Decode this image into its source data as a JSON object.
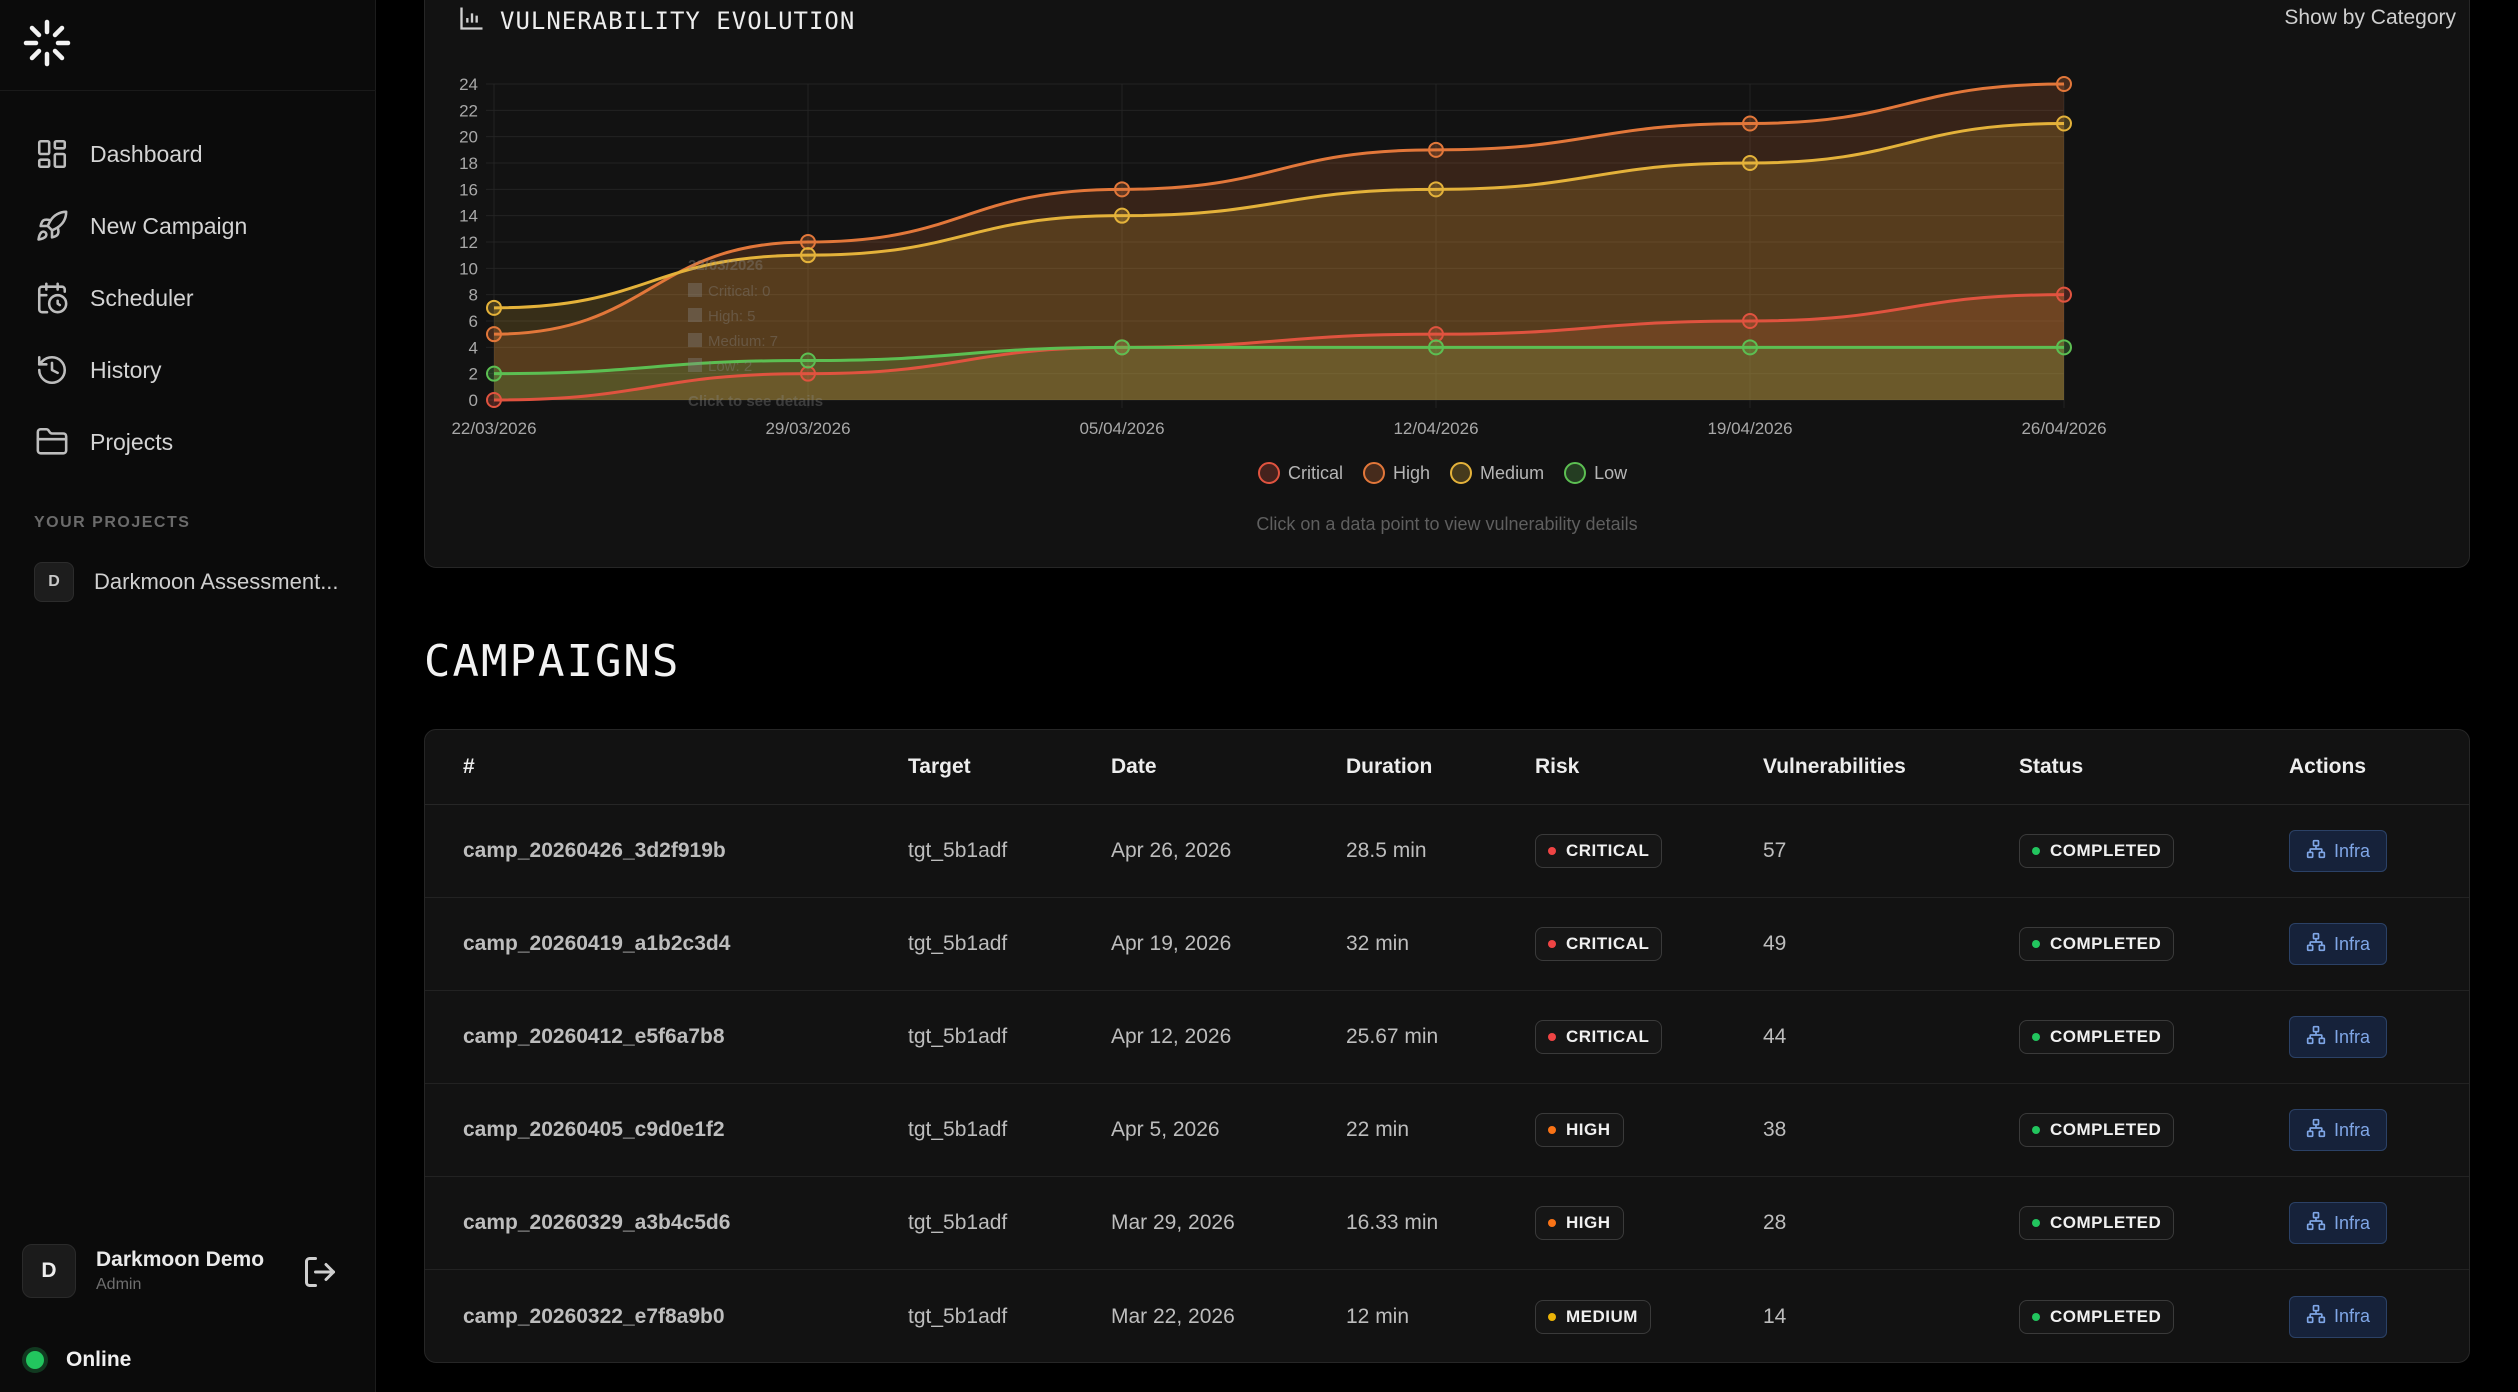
{
  "sidebar": {
    "nav": [
      {
        "label": "Dashboard",
        "icon": "dashboard-icon"
      },
      {
        "label": "New Campaign",
        "icon": "rocket-icon"
      },
      {
        "label": "Scheduler",
        "icon": "calendar-clock-icon"
      },
      {
        "label": "History",
        "icon": "history-icon"
      },
      {
        "label": "Projects",
        "icon": "folder-icon"
      }
    ],
    "projects_label": "YOUR PROJECTS",
    "projects": [
      {
        "initial": "D",
        "name": "Darkmoon Assessment..."
      }
    ],
    "user": {
      "initial": "D",
      "name": "Darkmoon Demo",
      "role": "Admin"
    },
    "status": "Online"
  },
  "chart_header": {
    "title": "VULNERABILITY EVOLUTION",
    "toggle": "Show by Category",
    "hint": "Click on a data point to view vulnerability details"
  },
  "chart_data": {
    "type": "line",
    "title": "VULNERABILITY EVOLUTION",
    "x": [
      "22/03/2026",
      "29/03/2026",
      "05/04/2026",
      "12/04/2026",
      "19/04/2026",
      "26/04/2026"
    ],
    "ylim": [
      0,
      24
    ],
    "yticks": [
      0,
      2,
      4,
      6,
      8,
      10,
      12,
      14,
      16,
      18,
      20,
      22,
      24
    ],
    "grid": true,
    "legend_position": "bottom",
    "series": [
      {
        "name": "Critical",
        "color": "#e0533f",
        "values": [
          0,
          2,
          4,
          5,
          6,
          8
        ]
      },
      {
        "name": "High",
        "color": "#e2773a",
        "values": [
          5,
          12,
          16,
          19,
          21,
          24
        ]
      },
      {
        "name": "Medium",
        "color": "#e4b23a",
        "values": [
          7,
          11,
          14,
          16,
          18,
          21
        ]
      },
      {
        "name": "Low",
        "color": "#5cbf52",
        "values": [
          2,
          3,
          4,
          4,
          4,
          4
        ]
      }
    ],
    "tooltip": {
      "date": "22/03/2026",
      "lines": [
        "Critical: 0",
        "High: 5",
        "Medium: 7",
        "Low: 2"
      ],
      "footer": "Click to see details"
    }
  },
  "campaigns": {
    "title": "CAMPAIGNS",
    "columns": [
      "#",
      "Target",
      "Date",
      "Duration",
      "Risk",
      "Vulnerabilities",
      "Status",
      "Actions"
    ],
    "action_label": "Infra",
    "risk_colors": {
      "CRITICAL": "#ef4444",
      "HIGH": "#f97316",
      "MEDIUM": "#eab308"
    },
    "status_color": "#22c55e",
    "rows": [
      {
        "id": "camp_20260426_3d2f919b",
        "target": "tgt_5b1adf",
        "date": "Apr 26, 2026",
        "duration": "28.5 min",
        "risk": "CRITICAL",
        "vulns": "57",
        "status": "COMPLETED"
      },
      {
        "id": "camp_20260419_a1b2c3d4",
        "target": "tgt_5b1adf",
        "date": "Apr 19, 2026",
        "duration": "32 min",
        "risk": "CRITICAL",
        "vulns": "49",
        "status": "COMPLETED"
      },
      {
        "id": "camp_20260412_e5f6a7b8",
        "target": "tgt_5b1adf",
        "date": "Apr 12, 2026",
        "duration": "25.67 min",
        "risk": "CRITICAL",
        "vulns": "44",
        "status": "COMPLETED"
      },
      {
        "id": "camp_20260405_c9d0e1f2",
        "target": "tgt_5b1adf",
        "date": "Apr 5, 2026",
        "duration": "22 min",
        "risk": "HIGH",
        "vulns": "38",
        "status": "COMPLETED"
      },
      {
        "id": "camp_20260329_a3b4c5d6",
        "target": "tgt_5b1adf",
        "date": "Mar 29, 2026",
        "duration": "16.33 min",
        "risk": "HIGH",
        "vulns": "28",
        "status": "COMPLETED"
      },
      {
        "id": "camp_20260322_e7f8a9b0",
        "target": "tgt_5b1adf",
        "date": "Mar 22, 2026",
        "duration": "12 min",
        "risk": "MEDIUM",
        "vulns": "14",
        "status": "COMPLETED"
      }
    ]
  }
}
